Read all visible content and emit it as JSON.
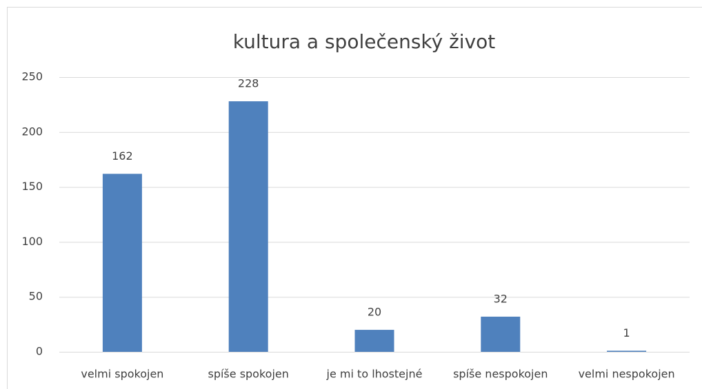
{
  "chart_data": {
    "type": "bar",
    "title": "kultura a společenský život",
    "categories": [
      "velmi spokojen",
      "spíše spokojen",
      "je mi to lhostejné",
      "spíše nespokojen",
      "velmi nespokojen"
    ],
    "values": [
      162,
      228,
      20,
      32,
      1
    ],
    "color": "#4f81bd",
    "ylim": [
      0,
      250
    ],
    "yticks": [
      0,
      50,
      100,
      150,
      200,
      250
    ],
    "grid": true,
    "data_labels": true
  }
}
